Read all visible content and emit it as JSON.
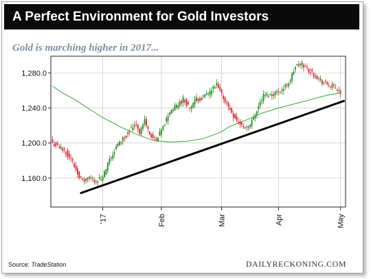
{
  "header": {
    "title": "A Perfect Environment for Gold Investors"
  },
  "subtitle": "Gold is marching higher in 2017...",
  "footer": {
    "source_label": "Source:",
    "source_name": "TradeStation",
    "watermark": "DAILYRECKONING.COM"
  },
  "colors": {
    "up": "#1e8c1e",
    "down": "#d8232a",
    "moving_average": "#2ea832",
    "trendline": "#000000",
    "grid": "#c8c8c8"
  },
  "chart_data": {
    "type": "candlestick",
    "title": "A Perfect Environment for Gold Investors",
    "subtitle": "Gold is marching higher in 2017...",
    "y_ticks": [
      1160,
      1200,
      1240,
      1280
    ],
    "y_tick_labels": [
      "1,160.0",
      "1,200.0",
      "1,240.0",
      "1,280.0"
    ],
    "ylim": [
      1127,
      1299
    ],
    "x_ticks": [
      {
        "label": "'17",
        "index": 30
      },
      {
        "label": "Feb",
        "index": 65
      },
      {
        "label": "Mar",
        "index": 101
      },
      {
        "label": "Apr",
        "index": 135
      },
      {
        "label": "May",
        "index": 172
      }
    ],
    "xlim": [
      -1,
      175
    ],
    "grid": true,
    "trendline": {
      "start": {
        "index": 17,
        "value": 1143
      },
      "end": {
        "index": 174,
        "value": 1248
      }
    },
    "moving_average": [
      [
        0,
        1265
      ],
      [
        6,
        1257
      ],
      [
        13,
        1250
      ],
      [
        20,
        1241
      ],
      [
        30,
        1229
      ],
      [
        40,
        1219
      ],
      [
        50,
        1210
      ],
      [
        60,
        1203
      ],
      [
        70,
        1201
      ],
      [
        80,
        1202
      ],
      [
        90,
        1205
      ],
      [
        100,
        1212
      ],
      [
        105,
        1218
      ],
      [
        110,
        1222
      ],
      [
        118,
        1228
      ],
      [
        125,
        1234
      ],
      [
        135,
        1240
      ],
      [
        145,
        1245
      ],
      [
        155,
        1250
      ],
      [
        165,
        1255
      ],
      [
        172,
        1257
      ]
    ],
    "ohlc_anchors": [
      [
        0,
        1200
      ],
      [
        4,
        1195
      ],
      [
        8,
        1190
      ],
      [
        12,
        1178
      ],
      [
        15,
        1166
      ],
      [
        18,
        1156
      ],
      [
        22,
        1160
      ],
      [
        26,
        1157
      ],
      [
        30,
        1160
      ],
      [
        34,
        1180
      ],
      [
        38,
        1195
      ],
      [
        42,
        1205
      ],
      [
        46,
        1215
      ],
      [
        50,
        1222
      ],
      [
        52,
        1212
      ],
      [
        55,
        1226
      ],
      [
        58,
        1210
      ],
      [
        62,
        1202
      ],
      [
        66,
        1218
      ],
      [
        70,
        1236
      ],
      [
        74,
        1242
      ],
      [
        78,
        1250
      ],
      [
        82,
        1240
      ],
      [
        86,
        1250
      ],
      [
        90,
        1252
      ],
      [
        94,
        1258
      ],
      [
        98,
        1266
      ],
      [
        102,
        1252
      ],
      [
        106,
        1238
      ],
      [
        110,
        1226
      ],
      [
        114,
        1218
      ],
      [
        118,
        1220
      ],
      [
        122,
        1238
      ],
      [
        126,
        1254
      ],
      [
        130,
        1255
      ],
      [
        134,
        1258
      ],
      [
        138,
        1262
      ],
      [
        142,
        1272
      ],
      [
        145,
        1287
      ],
      [
        149,
        1290
      ],
      [
        153,
        1283
      ],
      [
        157,
        1277
      ],
      [
        161,
        1270
      ],
      [
        165,
        1266
      ],
      [
        170,
        1262
      ],
      [
        172,
        1258
      ]
    ]
  }
}
